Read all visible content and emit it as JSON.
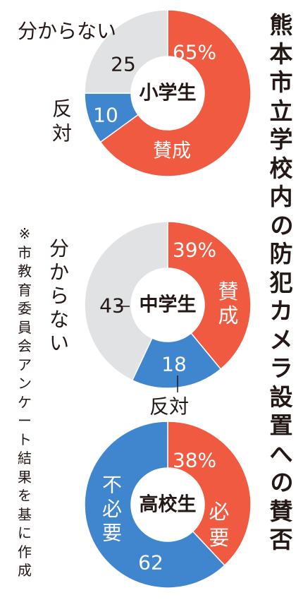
{
  "title": "熊本市立学校内の防犯カメラ設置への賛否",
  "note": "※市教育委員会アンケート結果を基に作成",
  "colors": {
    "favor": "#ef5a41",
    "against": "#3f86cf",
    "unsure": "#e1e2e4",
    "text": "#231815"
  },
  "chart_data": [
    {
      "type": "pie",
      "center_label": "小学生",
      "series": [
        {
          "name": "賛成",
          "value": 65,
          "value_label": "65%",
          "color": "#ef5a41"
        },
        {
          "name": "反対",
          "value": 10,
          "value_label": "10",
          "color": "#3f86cf"
        },
        {
          "name": "分からない",
          "value": 25,
          "value_label": "25",
          "color": "#e1e2e4"
        }
      ]
    },
    {
      "type": "pie",
      "center_label": "中学生",
      "series": [
        {
          "name": "賛成",
          "value": 39,
          "value_label": "39%",
          "color": "#ef5a41"
        },
        {
          "name": "反対",
          "value": 18,
          "value_label": "18",
          "color": "#3f86cf"
        },
        {
          "name": "分からない",
          "value": 43,
          "value_label": "43",
          "color": "#e1e2e4"
        }
      ]
    },
    {
      "type": "pie",
      "center_label": "高校生",
      "series": [
        {
          "name": "必要",
          "value": 38,
          "value_label": "38%",
          "color": "#ef5a41"
        },
        {
          "name": "不必要",
          "value": 62,
          "value_label": "62",
          "color": "#3f86cf"
        }
      ]
    }
  ]
}
